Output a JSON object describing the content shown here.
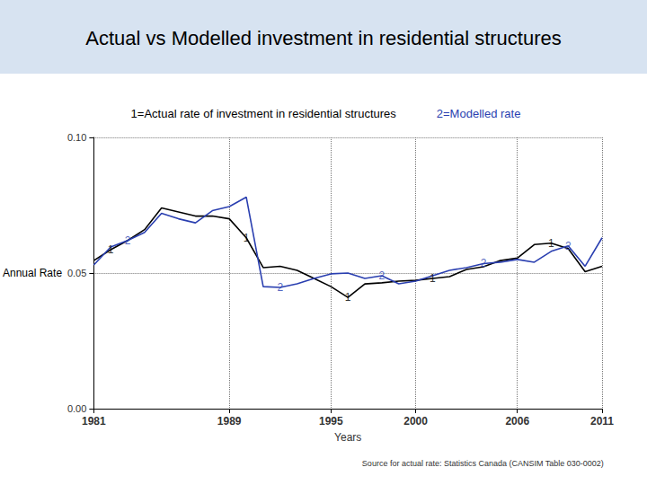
{
  "chart_data": {
    "type": "line",
    "title": "Actual vs Modelled investment in residential structures",
    "x_label": "Years",
    "y_label": "Annual Rate",
    "source": "Source for actual rate: Statistics Canada (CANSIM Table 030-0002)",
    "legend": "top",
    "grid": true,
    "x": [
      1981,
      1982,
      1983,
      1984,
      1985,
      1986,
      1987,
      1988,
      1989,
      1990,
      1991,
      1992,
      1993,
      1994,
      1995,
      1996,
      1997,
      1998,
      1999,
      2000,
      2001,
      2002,
      2003,
      2004,
      2005,
      2006,
      2007,
      2008,
      2009,
      2010,
      2011
    ],
    "series": [
      {
        "name": "1=Actual rate of investment in residential structures",
        "color": "#000000",
        "values": [
          0.0546,
          0.0586,
          0.062,
          0.066,
          0.074,
          0.0725,
          0.071,
          0.071,
          0.07,
          0.063,
          0.052,
          0.0525,
          0.051,
          0.048,
          0.045,
          0.041,
          0.046,
          0.0464,
          0.047,
          0.0473,
          0.048,
          0.0487,
          0.0513,
          0.0523,
          0.0546,
          0.0555,
          0.0605,
          0.061,
          0.059,
          0.0505,
          0.0525
        ]
      },
      {
        "name": "2=Modelled rate",
        "color": "#2a3fb0",
        "values": [
          0.053,
          0.0596,
          0.062,
          0.065,
          0.072,
          0.07,
          0.0685,
          0.073,
          0.0745,
          0.078,
          0.045,
          0.0447,
          0.046,
          0.048,
          0.0497,
          0.05,
          0.048,
          0.049,
          0.046,
          0.047,
          0.049,
          0.051,
          0.052,
          0.0535,
          0.054,
          0.055,
          0.054,
          0.058,
          0.06,
          0.0525,
          0.063
        ]
      }
    ],
    "annotations": [
      {
        "text": "1",
        "x": 1982,
        "y": 0.0586,
        "color": "#000000"
      },
      {
        "text": "1",
        "x": 1990,
        "y": 0.063,
        "color": "#000000"
      },
      {
        "text": "1",
        "x": 1996,
        "y": 0.041,
        "color": "#000000"
      },
      {
        "text": "1",
        "x": 2001,
        "y": 0.048,
        "color": "#000000"
      },
      {
        "text": "1",
        "x": 2008,
        "y": 0.061,
        "color": "#000000"
      },
      {
        "text": "2",
        "x": 1983,
        "y": 0.062,
        "color": "#2a3fb0"
      },
      {
        "text": "2",
        "x": 1992,
        "y": 0.0447,
        "color": "#2a3fb0"
      },
      {
        "text": "2",
        "x": 1998,
        "y": 0.049,
        "color": "#2a3fb0"
      },
      {
        "text": "2",
        "x": 2004,
        "y": 0.0535,
        "color": "#2a3fb0"
      },
      {
        "text": "2",
        "x": 2009,
        "y": 0.06,
        "color": "#2a3fb0"
      }
    ],
    "xlim": [
      1981,
      2011
    ],
    "xticks": [
      1981,
      1989,
      1995,
      2000,
      2006,
      2011
    ],
    "ylim": [
      0,
      0.1
    ],
    "yticks": [
      {
        "value": 0,
        "label": "0.00"
      },
      {
        "value": 0.05,
        "label": "0.05"
      },
      {
        "value": 0.1,
        "label": "0.10"
      }
    ]
  }
}
